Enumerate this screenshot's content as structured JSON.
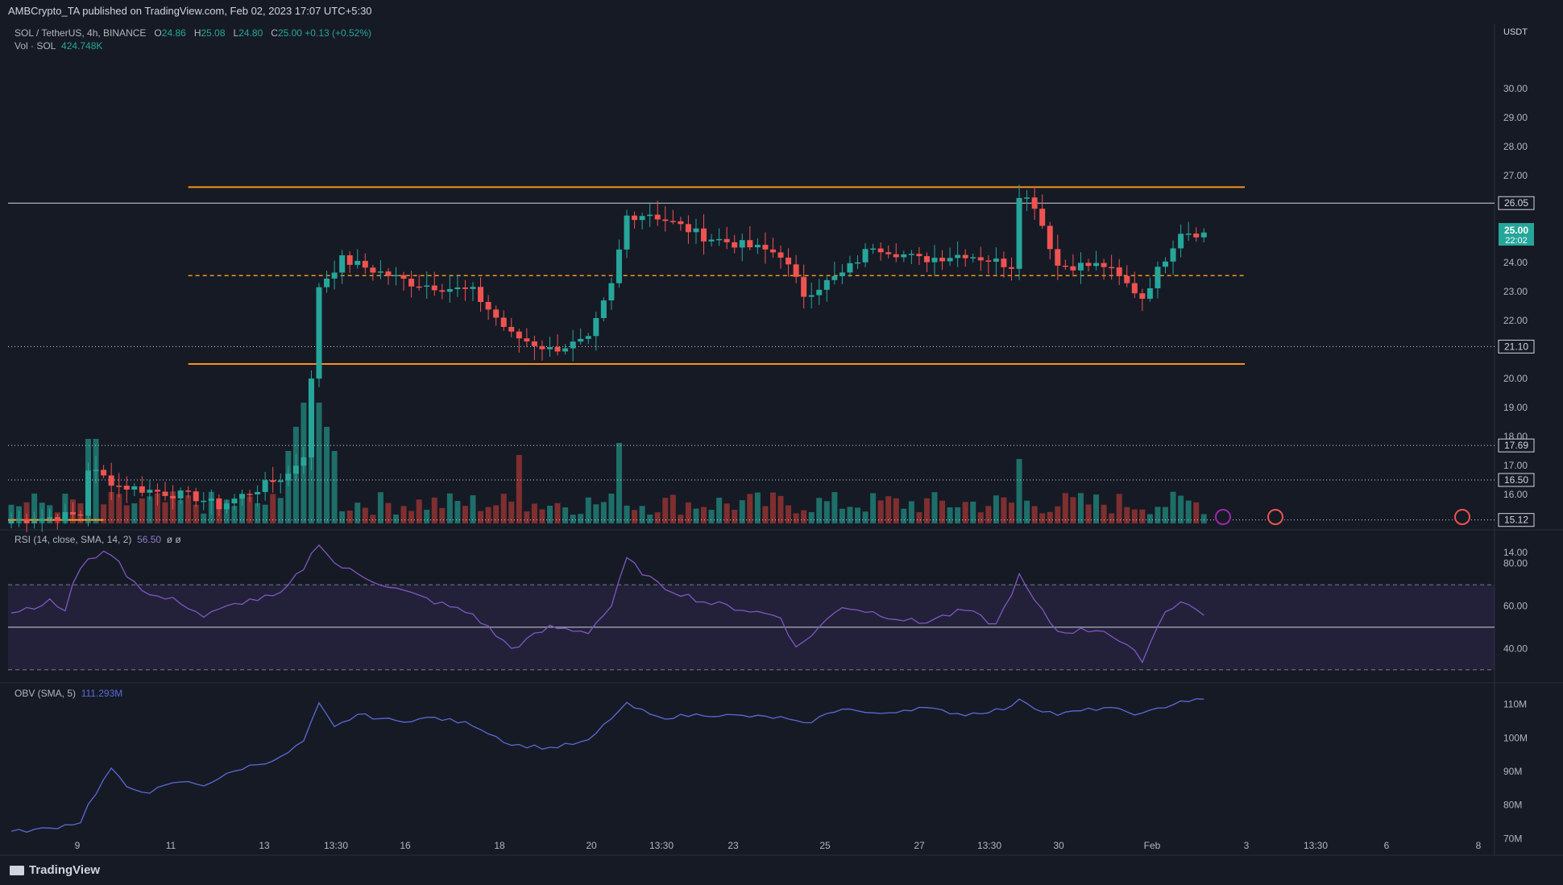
{
  "header": {
    "credit": "AMBCrypto_TA published on TradingView.com, Feb 02, 2023 17:07 UTC+5:30",
    "symbol": "SOL / TetherUS, 4h, BINANCE",
    "o_label": "O",
    "o_value": "24.86",
    "h_label": "H",
    "h_value": "25.08",
    "l_label": "L",
    "l_value": "24.80",
    "c_label": "C",
    "c_value": "25.00 +0.13 (+0.52%)",
    "vol_label": "Vol · SOL",
    "vol_value": "424.748K",
    "rsi_label": "RSI (14, close, SMA, 14, 2)",
    "rsi_value": "56.50",
    "rsi_extra": "ø ø",
    "obv_label": "OBV (SMA, 5)",
    "obv_value": "111.293M"
  },
  "footer": {
    "brand": "TradingView"
  },
  "price_tags": {
    "current": "25.00",
    "countdown": "22:02"
  },
  "colors": {
    "up": "#26a69a",
    "down": "#ef5350",
    "bg": "#161a25",
    "range": "#f7931a",
    "rsi": "#7e57c2",
    "obv": "#5b6ad6"
  },
  "chart_data": [
    {
      "type": "candlestick",
      "title": "SOL / TetherUS, 4h, BINANCE",
      "ylabel": "USDT",
      "ylim": [
        14.0,
        31.0
      ],
      "y_ticks": [
        "30.00",
        "29.00",
        "28.00",
        "27.00",
        "26.00",
        "25.00",
        "24.00",
        "23.00",
        "22.00",
        "21.00",
        "20.00",
        "19.00",
        "18.00",
        "17.00",
        "16.00",
        "15.00",
        "14.00"
      ],
      "x_ticks": [
        "9",
        "11",
        "13",
        "13:30",
        "16",
        "18",
        "20",
        "13:30",
        "23",
        "25",
        "27",
        "13:30",
        "30",
        "Feb",
        "3",
        "13:30",
        "6",
        "8"
      ],
      "range_top": 26.6,
      "range_mid": 23.55,
      "range_bottom": 20.5,
      "horizontal_levels": [
        {
          "value": 26.05,
          "label": "26.05",
          "style": "solid"
        },
        {
          "value": 21.1,
          "label": "21.10",
          "style": "dotted"
        },
        {
          "value": 17.69,
          "label": "17.69",
          "style": "dotted"
        },
        {
          "value": 16.5,
          "label": "16.50",
          "style": "dotted"
        },
        {
          "value": 15.12,
          "label": "15.12",
          "style": "dotted"
        }
      ],
      "close_anchors": [
        [
          0,
          15.1
        ],
        [
          9,
          15.3
        ],
        [
          10,
          16.9
        ],
        [
          14,
          16.3
        ],
        [
          24,
          15.9
        ],
        [
          27,
          15.6
        ],
        [
          32,
          16.2
        ],
        [
          36,
          16.7
        ],
        [
          38,
          17.4
        ],
        [
          39,
          19.9
        ],
        [
          40,
          23.2
        ],
        [
          43,
          24.1
        ],
        [
          52,
          23.3
        ],
        [
          60,
          23.0
        ],
        [
          65,
          21.5
        ],
        [
          70,
          21.0
        ],
        [
          75,
          21.3
        ],
        [
          78,
          23.2
        ],
        [
          80,
          25.6
        ],
        [
          83,
          25.7
        ],
        [
          90,
          24.9
        ],
        [
          100,
          24.3
        ],
        [
          103,
          22.9
        ],
        [
          108,
          23.6
        ],
        [
          112,
          24.6
        ],
        [
          118,
          24.1
        ],
        [
          124,
          24.3
        ],
        [
          130,
          23.9
        ],
        [
          131,
          26.4
        ],
        [
          133,
          26.0
        ],
        [
          136,
          23.9
        ],
        [
          142,
          23.9
        ],
        [
          147,
          22.8
        ],
        [
          152,
          25.1
        ],
        [
          155,
          25.0
        ]
      ],
      "volume_peak_index": 39,
      "volume_scale_label": "Vol · SOL"
    },
    {
      "type": "line",
      "title": "RSI (14, close, SMA, 14, 2)",
      "ylim": [
        25,
        95
      ],
      "y_ticks": [
        "80.00",
        "60.00",
        "40.00"
      ],
      "bands": [
        30,
        70
      ],
      "midline": 50,
      "anchors": [
        [
          0,
          57
        ],
        [
          5,
          62
        ],
        [
          7,
          58
        ],
        [
          8,
          70
        ],
        [
          10,
          83
        ],
        [
          13,
          85
        ],
        [
          15,
          75
        ],
        [
          18,
          65
        ],
        [
          22,
          62
        ],
        [
          25,
          55
        ],
        [
          30,
          62
        ],
        [
          35,
          65
        ],
        [
          38,
          78
        ],
        [
          40,
          90
        ],
        [
          42,
          80
        ],
        [
          45,
          75
        ],
        [
          50,
          68
        ],
        [
          55,
          62
        ],
        [
          60,
          56
        ],
        [
          65,
          40
        ],
        [
          70,
          50
        ],
        [
          75,
          48
        ],
        [
          78,
          60
        ],
        [
          80,
          82
        ],
        [
          84,
          70
        ],
        [
          90,
          62
        ],
        [
          100,
          55
        ],
        [
          102,
          40
        ],
        [
          108,
          60
        ],
        [
          112,
          57
        ],
        [
          118,
          52
        ],
        [
          124,
          58
        ],
        [
          128,
          51
        ],
        [
          131,
          74
        ],
        [
          133,
          62
        ],
        [
          136,
          48
        ],
        [
          142,
          49
        ],
        [
          147,
          35
        ],
        [
          150,
          58
        ],
        [
          152,
          62
        ],
        [
          155,
          56.5
        ]
      ]
    },
    {
      "type": "line",
      "title": "OBV (SMA, 5)",
      "ylim": [
        66,
        114
      ],
      "y_ticks": [
        "110M",
        "100M",
        "90M",
        "80M",
        "70M"
      ],
      "anchors": [
        [
          0,
          72
        ],
        [
          5,
          73
        ],
        [
          9,
          75
        ],
        [
          10,
          80
        ],
        [
          13,
          91
        ],
        [
          15,
          85
        ],
        [
          18,
          84
        ],
        [
          22,
          87
        ],
        [
          25,
          86
        ],
        [
          30,
          91
        ],
        [
          35,
          94
        ],
        [
          38,
          99
        ],
        [
          40,
          110
        ],
        [
          42,
          103
        ],
        [
          45,
          107
        ],
        [
          50,
          105
        ],
        [
          55,
          106
        ],
        [
          60,
          104
        ],
        [
          65,
          98
        ],
        [
          70,
          97
        ],
        [
          75,
          99
        ],
        [
          78,
          106
        ],
        [
          80,
          110
        ],
        [
          84,
          106
        ],
        [
          90,
          107
        ],
        [
          100,
          106
        ],
        [
          103,
          104
        ],
        [
          108,
          109
        ],
        [
          112,
          107
        ],
        [
          118,
          109
        ],
        [
          124,
          107
        ],
        [
          130,
          109
        ],
        [
          131,
          112
        ],
        [
          133,
          109
        ],
        [
          136,
          107
        ],
        [
          142,
          109
        ],
        [
          147,
          107
        ],
        [
          152,
          111
        ],
        [
          155,
          111.3
        ]
      ]
    }
  ]
}
